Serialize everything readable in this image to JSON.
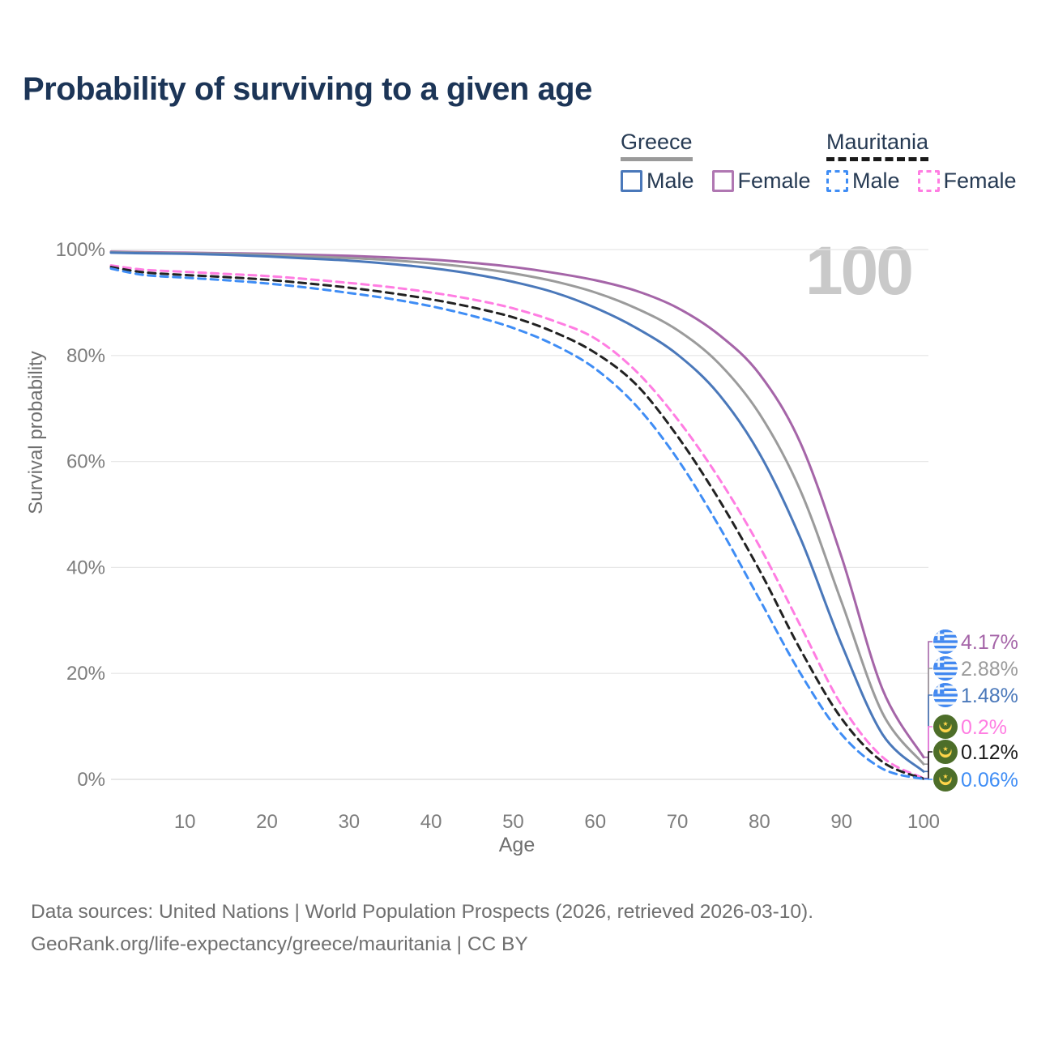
{
  "title": "Probability of surviving to a given age",
  "legend": {
    "groups": [
      {
        "country": "Greece",
        "line_style": "solid",
        "items": [
          {
            "label": "Male",
            "color": "#4a78ba"
          },
          {
            "label": "Female",
            "color": "#b077b2"
          }
        ]
      },
      {
        "country": "Mauritania",
        "line_style": "dashed",
        "items": [
          {
            "label": "Male",
            "color": "#3f8df5"
          },
          {
            "label": "Female",
            "color": "#ff7de2"
          }
        ]
      }
    ]
  },
  "chart_data": {
    "type": "line",
    "title": "Probability of surviving to a given age",
    "xlabel": "Age",
    "ylabel": "Survival probability",
    "xlim": [
      1,
      100
    ],
    "ylim": [
      0,
      100
    ],
    "grid": "horizontal",
    "watermark": "100",
    "x_ticks": [
      "10",
      "20",
      "30",
      "40",
      "50",
      "60",
      "70",
      "80",
      "90",
      "100"
    ],
    "y_ticks": [
      "0%",
      "20%",
      "40%",
      "60%",
      "80%",
      "100%"
    ],
    "series": [
      {
        "id": "greece-female",
        "name": "Greece Female",
        "country": "Greece",
        "sex": "Female",
        "color": "#a565a8",
        "dash": "solid",
        "points": [
          [
            1,
            99.6
          ],
          [
            5,
            99.5
          ],
          [
            10,
            99.4
          ],
          [
            15,
            99.3
          ],
          [
            20,
            99.2
          ],
          [
            25,
            99.0
          ],
          [
            30,
            98.8
          ],
          [
            35,
            98.5
          ],
          [
            40,
            98.1
          ],
          [
            45,
            97.5
          ],
          [
            50,
            96.7
          ],
          [
            55,
            95.6
          ],
          [
            60,
            94.2
          ],
          [
            65,
            92.2
          ],
          [
            70,
            89.0
          ],
          [
            75,
            84.0
          ],
          [
            80,
            76.5
          ],
          [
            85,
            63.5
          ],
          [
            90,
            42.0
          ],
          [
            95,
            17.0
          ],
          [
            100,
            4.17
          ]
        ]
      },
      {
        "id": "greece-all",
        "name": "Greece (both sexes)",
        "country": "Greece",
        "sex": "All",
        "color": "#9b9b9b",
        "dash": "solid",
        "points": [
          [
            1,
            99.5
          ],
          [
            5,
            99.4
          ],
          [
            10,
            99.3
          ],
          [
            15,
            99.2
          ],
          [
            20,
            99.0
          ],
          [
            25,
            98.7
          ],
          [
            30,
            98.4
          ],
          [
            35,
            98.0
          ],
          [
            40,
            97.4
          ],
          [
            45,
            96.6
          ],
          [
            50,
            95.5
          ],
          [
            55,
            94.0
          ],
          [
            60,
            91.9
          ],
          [
            65,
            88.9
          ],
          [
            70,
            84.8
          ],
          [
            75,
            78.6
          ],
          [
            80,
            69.0
          ],
          [
            85,
            54.5
          ],
          [
            90,
            33.5
          ],
          [
            95,
            12.5
          ],
          [
            100,
            2.88
          ]
        ]
      },
      {
        "id": "greece-male",
        "name": "Greece Male",
        "country": "Greece",
        "sex": "Male",
        "color": "#4a78ba",
        "dash": "solid",
        "points": [
          [
            1,
            99.4
          ],
          [
            5,
            99.3
          ],
          [
            10,
            99.2
          ],
          [
            15,
            99.0
          ],
          [
            20,
            98.7
          ],
          [
            25,
            98.3
          ],
          [
            30,
            97.9
          ],
          [
            35,
            97.3
          ],
          [
            40,
            96.5
          ],
          [
            45,
            95.4
          ],
          [
            50,
            93.9
          ],
          [
            55,
            91.9
          ],
          [
            60,
            89.0
          ],
          [
            65,
            85.2
          ],
          [
            70,
            80.2
          ],
          [
            75,
            72.8
          ],
          [
            80,
            61.5
          ],
          [
            85,
            45.5
          ],
          [
            90,
            25.5
          ],
          [
            95,
            8.5
          ],
          [
            100,
            1.48
          ]
        ]
      },
      {
        "id": "mauritania-female",
        "name": "Mauritania Female",
        "country": "Mauritania",
        "sex": "Female",
        "color": "#ff7de2",
        "dash": "dashed",
        "points": [
          [
            1,
            97.0
          ],
          [
            5,
            96.2
          ],
          [
            10,
            95.8
          ],
          [
            15,
            95.4
          ],
          [
            20,
            95.0
          ],
          [
            25,
            94.4
          ],
          [
            30,
            93.7
          ],
          [
            35,
            92.9
          ],
          [
            40,
            91.9
          ],
          [
            45,
            90.6
          ],
          [
            50,
            88.9
          ],
          [
            55,
            86.5
          ],
          [
            60,
            83.2
          ],
          [
            65,
            77.0
          ],
          [
            70,
            68.0
          ],
          [
            75,
            57.0
          ],
          [
            80,
            44.0
          ],
          [
            85,
            29.0
          ],
          [
            90,
            14.0
          ],
          [
            95,
            4.2
          ],
          [
            100,
            0.2
          ]
        ]
      },
      {
        "id": "mauritania-all",
        "name": "Mauritania (both sexes)",
        "country": "Mauritania",
        "sex": "All",
        "color": "#222222",
        "dash": "dashed",
        "points": [
          [
            1,
            96.7
          ],
          [
            5,
            95.7
          ],
          [
            10,
            95.2
          ],
          [
            15,
            94.8
          ],
          [
            20,
            94.3
          ],
          [
            25,
            93.6
          ],
          [
            30,
            92.8
          ],
          [
            35,
            91.8
          ],
          [
            40,
            90.6
          ],
          [
            45,
            89.1
          ],
          [
            50,
            87.2
          ],
          [
            55,
            84.4
          ],
          [
            60,
            80.5
          ],
          [
            65,
            74.5
          ],
          [
            70,
            64.8
          ],
          [
            75,
            53.0
          ],
          [
            80,
            39.5
          ],
          [
            85,
            24.5
          ],
          [
            90,
            11.5
          ],
          [
            95,
            3.3
          ],
          [
            100,
            0.12
          ]
        ]
      },
      {
        "id": "mauritania-male",
        "name": "Mauritania Male",
        "country": "Mauritania",
        "sex": "Male",
        "color": "#3f8df5",
        "dash": "dashed",
        "points": [
          [
            1,
            96.4
          ],
          [
            5,
            95.2
          ],
          [
            10,
            94.7
          ],
          [
            15,
            94.2
          ],
          [
            20,
            93.6
          ],
          [
            25,
            92.8
          ],
          [
            30,
            91.8
          ],
          [
            35,
            90.7
          ],
          [
            40,
            89.3
          ],
          [
            45,
            87.5
          ],
          [
            50,
            85.2
          ],
          [
            55,
            82.0
          ],
          [
            60,
            77.5
          ],
          [
            65,
            70.5
          ],
          [
            70,
            60.5
          ],
          [
            75,
            48.0
          ],
          [
            80,
            34.0
          ],
          [
            85,
            20.0
          ],
          [
            90,
            8.5
          ],
          [
            95,
            2.0
          ],
          [
            100,
            0.06
          ]
        ]
      }
    ],
    "end_labels": [
      {
        "value": "4.17%",
        "value_pct": 4.17,
        "color": "#a565a8",
        "flag": "gr",
        "series": "Greece Female"
      },
      {
        "value": "2.88%",
        "value_pct": 2.88,
        "color": "#9b9b9b",
        "flag": "gr",
        "series": "Greece (both sexes)"
      },
      {
        "value": "1.48%",
        "value_pct": 1.48,
        "color": "#4a78ba",
        "flag": "gr",
        "series": "Greece Male"
      },
      {
        "value": "0.2%",
        "value_pct": 0.2,
        "color": "#ff7de2",
        "flag": "mr",
        "series": "Mauritania Female"
      },
      {
        "value": "0.12%",
        "value_pct": 0.12,
        "color": "#1a1a1a",
        "flag": "mr",
        "series": "Mauritania (both sexes)"
      },
      {
        "value": "0.06%",
        "value_pct": 0.06,
        "color": "#3f8df5",
        "flag": "mr",
        "series": "Mauritania Male"
      }
    ]
  },
  "footer": {
    "line1": "Data sources: United Nations | World Population Prospects (2026, retrieved 2026-03-10).",
    "line2": "GeoRank.org/life-expectancy/greece/mauritania | CC BY"
  }
}
